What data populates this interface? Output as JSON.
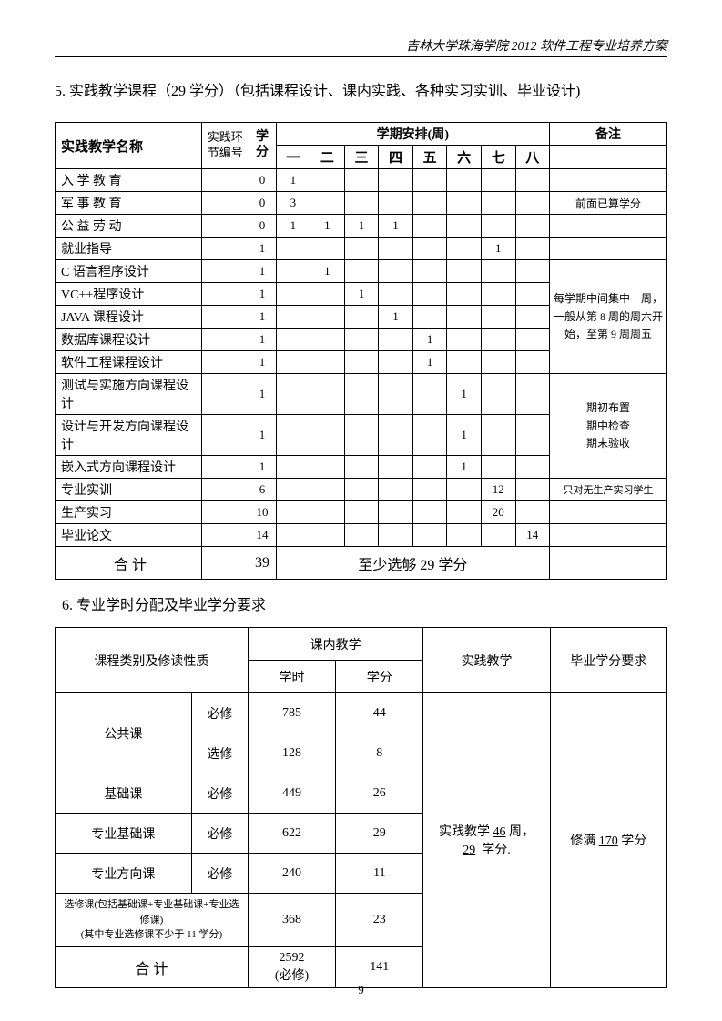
{
  "header": "吉林大学珠海学院 2012 软件工程专业培养方案",
  "section5_title": "5.  实践教学课程（29 学分）（包括课程设计、课内实践、各种实习实训、毕业设计)",
  "section6_title": "6.  专业学时分配及毕业学分要求",
  "table1": {
    "head_name": "实践教学名称",
    "head_code": "实践环节编号",
    "head_credit": "学分",
    "head_semester": "学期安排(周)",
    "head_note": "备注",
    "sem_labels": [
      "一",
      "二",
      "三",
      "四",
      "五",
      "六",
      "七",
      "八"
    ],
    "rows": [
      {
        "name": "入  学  教  育",
        "credit": "0",
        "sem": [
          "1",
          "",
          "",
          "",
          "",
          "",
          "",
          ""
        ],
        "note": ""
      },
      {
        "name": "军  事  教  育",
        "credit": "0",
        "sem": [
          "3",
          "",
          "",
          "",
          "",
          "",
          "",
          ""
        ],
        "note": "前面已算学分"
      },
      {
        "name": "公  益  劳  动",
        "credit": "0",
        "sem": [
          "1",
          "1",
          "1",
          "1",
          "",
          "",
          "",
          ""
        ],
        "note": ""
      },
      {
        "name": "就业指导",
        "credit": "1",
        "sem": [
          "",
          "",
          "",
          "",
          "",
          "",
          "1",
          ""
        ],
        "note": ""
      },
      {
        "name": "C 语言程序设计",
        "credit": "1",
        "sem": [
          "",
          "1",
          "",
          "",
          "",
          "",
          "",
          ""
        ],
        "note": ""
      },
      {
        "name": "VC++程序设计",
        "credit": "1",
        "sem": [
          "",
          "",
          "1",
          "",
          "",
          "",
          "",
          ""
        ],
        "note": ""
      },
      {
        "name": "JAVA 课程设计",
        "credit": "1",
        "sem": [
          "",
          "",
          "",
          "1",
          "",
          "",
          "",
          ""
        ],
        "note": ""
      },
      {
        "name": "数据库课程设计",
        "credit": "1",
        "sem": [
          "",
          "",
          "",
          "",
          "1",
          "",
          "",
          ""
        ],
        "note": ""
      },
      {
        "name": "软件工程课程设计",
        "credit": "1",
        "sem": [
          "",
          "",
          "",
          "",
          "1",
          "",
          "",
          ""
        ],
        "note": ""
      },
      {
        "name": "测试与实施方向课程设计",
        "credit": "1",
        "sem": [
          "",
          "",
          "",
          "",
          "",
          "1",
          "",
          ""
        ],
        "note": ""
      },
      {
        "name": "设计与开发方向课程设计",
        "credit": "1",
        "sem": [
          "",
          "",
          "",
          "",
          "",
          "1",
          "",
          ""
        ],
        "note": ""
      },
      {
        "name": "嵌入式方向课程设计",
        "credit": "1",
        "sem": [
          "",
          "",
          "",
          "",
          "",
          "1",
          "",
          ""
        ],
        "note": ""
      },
      {
        "name": "专业实训",
        "credit": "6",
        "sem": [
          "",
          "",
          "",
          "",
          "",
          "",
          "12",
          ""
        ],
        "note": "只对无生产实习学生"
      },
      {
        "name": "生产实习",
        "credit": "10",
        "sem": [
          "",
          "",
          "",
          "",
          "",
          "",
          "20",
          ""
        ],
        "note": ""
      },
      {
        "name": "毕业论文",
        "credit": "14",
        "sem": [
          "",
          "",
          "",
          "",
          "",
          "",
          "",
          "14"
        ],
        "note": ""
      }
    ],
    "note_group1": "每学期中间集中一周，一般从第 8 周的周六开始，至第 9 周周五",
    "note_group2": "期初布置\n期中检查\n期末验收",
    "sum_label": "合        计",
    "sum_credit": "39",
    "sum_text": "至少选够 29 学分"
  },
  "table2": {
    "head_cat": "课程类别及修读性质",
    "head_inclass": "课内教学",
    "head_hours": "学时",
    "head_credits": "学分",
    "head_practice": "实践教学",
    "head_grad": "毕业学分要求",
    "rows": [
      {
        "cat": "公共课",
        "req": "必修",
        "hours": "785",
        "credits": "44"
      },
      {
        "cat": "",
        "req": "选修",
        "hours": "128",
        "credits": "8"
      },
      {
        "cat": "基础课",
        "req": "必修",
        "hours": "449",
        "credits": "26"
      },
      {
        "cat": "专业基础课",
        "req": "必修",
        "hours": "622",
        "credits": "29"
      },
      {
        "cat": "专业方向课",
        "req": "必修",
        "hours": "240",
        "credits": "11"
      }
    ],
    "elective_note": "选修课(包括基础课+专业基础课+专业选修课)\n(其中专业选修课不少于 11 学分)",
    "elective_hours": "368",
    "elective_credits": "23",
    "practice_weeks": "46",
    "practice_credits": "29",
    "practice_text_prefix": "实践教学",
    "practice_text_mid": "周，",
    "practice_text_suffix": "学分.",
    "grad_prefix": "修满",
    "grad_value": "170",
    "grad_suffix": "学分",
    "sum_label": "合    计",
    "sum_hours": "2592\n(必修)",
    "sum_credits": "141"
  },
  "page_number": "9"
}
